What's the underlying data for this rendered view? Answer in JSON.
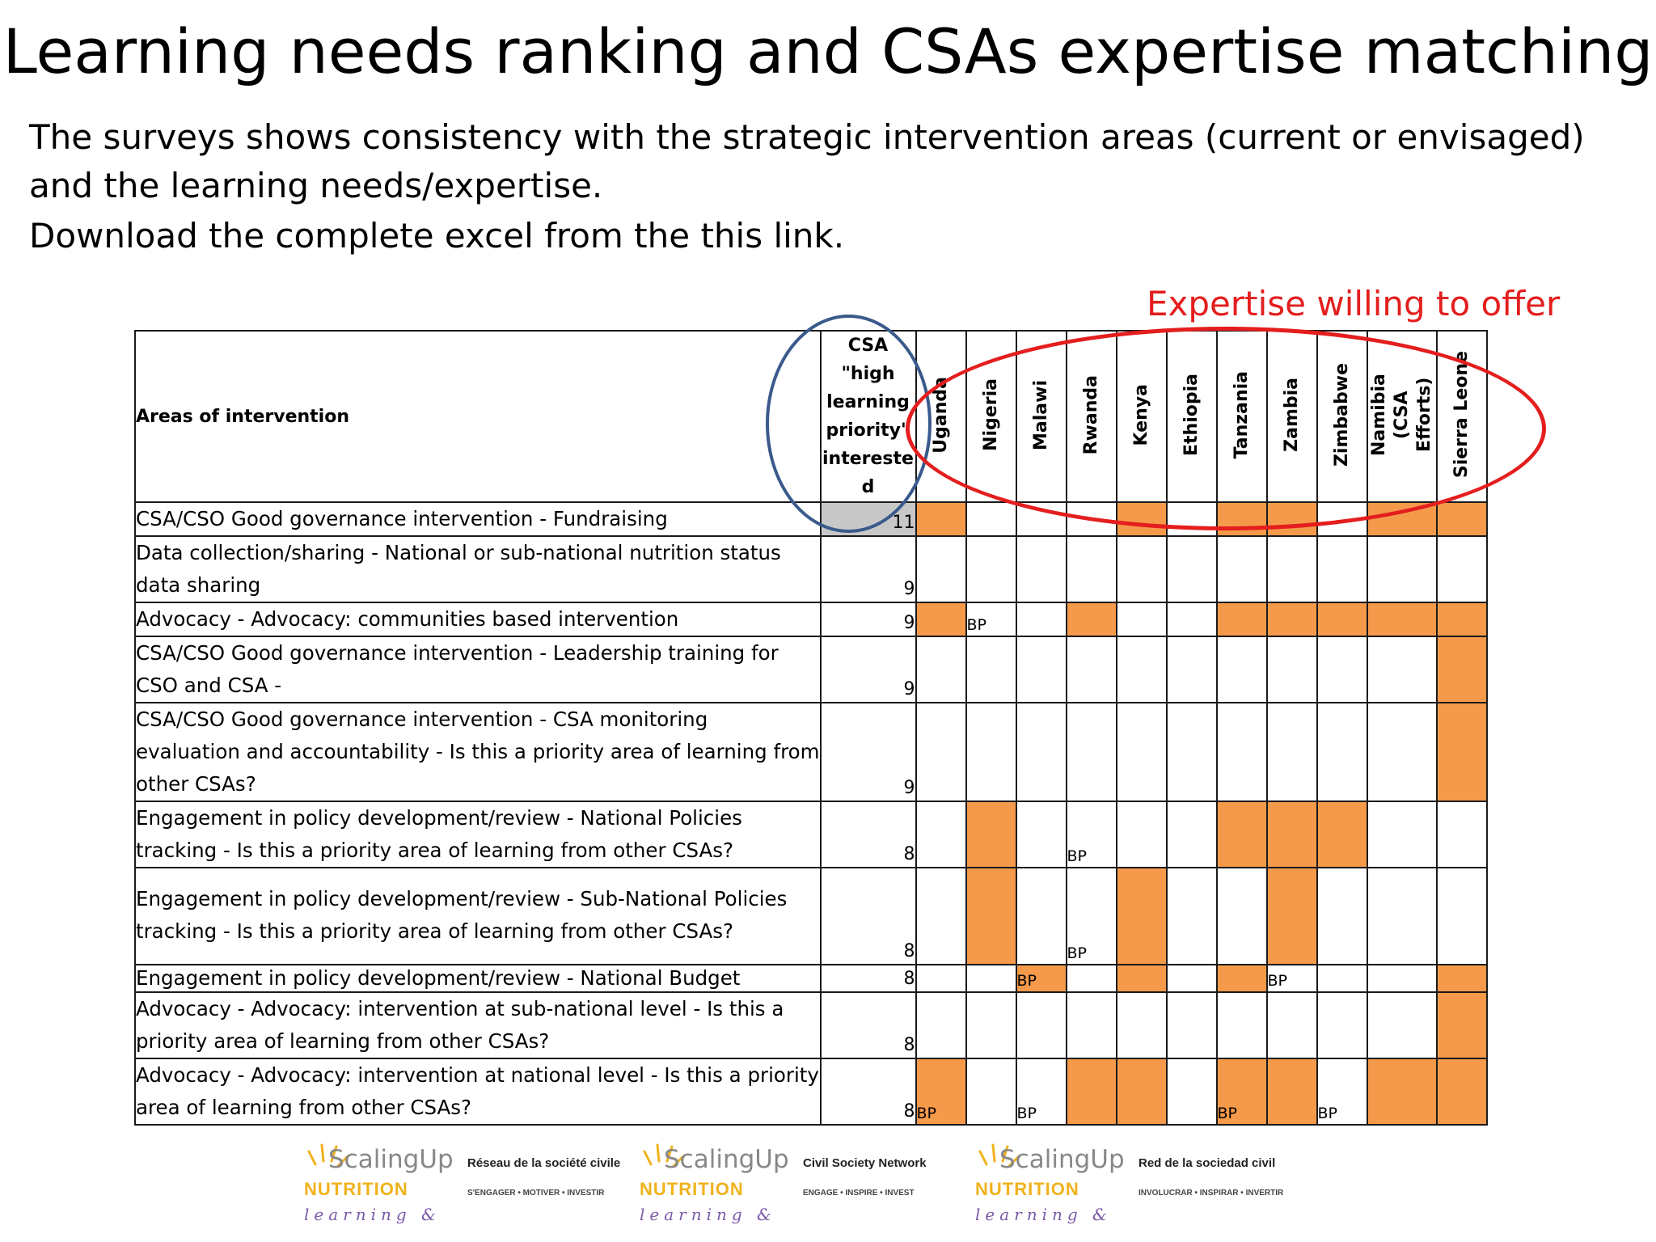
{
  "title": "Learning needs ranking and CSAs expertise matching",
  "intro": {
    "line1": "The surveys shows consistency with the strategic intervention areas (current or envisaged)",
    "line2": "and the learning needs/expertise.",
    "line3": "Download the complete excel from the this link."
  },
  "expertise_label": "Expertise willing to offer",
  "colors": {
    "fill": "#f59a4a",
    "gray": "#c8c8c8",
    "red": "#e41e1e",
    "blue": "#3a5a8c"
  },
  "table": {
    "areas_header": "Areas of intervention",
    "csa_header": [
      "CSA",
      "\"high",
      "learning",
      "priority\"",
      "intereste",
      "d"
    ],
    "countries": [
      "Uganda",
      "Nigeria",
      "Malawi",
      "Rwanda",
      "Kenya",
      "Ethiopia",
      "Tanzania",
      "Zambia",
      "Zimbabwe",
      "Namibia (CSA Efforts)",
      "Sierra Leone"
    ],
    "rows": [
      {
        "area": [
          "CSA/CSO Good governance intervention - Fundraising"
        ],
        "count": "11",
        "gray": true,
        "cells": [
          {
            "f": 1
          },
          {
            "f": 0
          },
          {
            "f": 0
          },
          {
            "f": 0
          },
          {
            "f": 1
          },
          {
            "f": 0
          },
          {
            "f": 1
          },
          {
            "f": 1
          },
          {
            "f": 0
          },
          {
            "f": 1
          },
          {
            "f": 1
          }
        ]
      },
      {
        "area": [
          "Data collection/sharing - National or sub-national nutrition status",
          "data sharing"
        ],
        "count": "9",
        "cells": [
          {
            "f": 0
          },
          {
            "f": 0
          },
          {
            "f": 0
          },
          {
            "f": 0
          },
          {
            "f": 0
          },
          {
            "f": 0
          },
          {
            "f": 0
          },
          {
            "f": 0
          },
          {
            "f": 0
          },
          {
            "f": 0
          },
          {
            "f": 0
          }
        ]
      },
      {
        "area": [
          "Advocacy - Advocacy: communities based intervention"
        ],
        "count": "9",
        "cells": [
          {
            "f": 1
          },
          {
            "f": 0,
            "t": "BP"
          },
          {
            "f": 0
          },
          {
            "f": 1
          },
          {
            "f": 0
          },
          {
            "f": 0
          },
          {
            "f": 1
          },
          {
            "f": 1
          },
          {
            "f": 1
          },
          {
            "f": 1
          },
          {
            "f": 1
          }
        ]
      },
      {
        "area": [
          "CSA/CSO Good governance intervention - Leadership training for",
          "CSO and CSA -"
        ],
        "count": "9",
        "cells": [
          {
            "f": 0
          },
          {
            "f": 0
          },
          {
            "f": 0
          },
          {
            "f": 0
          },
          {
            "f": 0
          },
          {
            "f": 0
          },
          {
            "f": 0
          },
          {
            "f": 0
          },
          {
            "f": 0
          },
          {
            "f": 0
          },
          {
            "f": 1
          }
        ]
      },
      {
        "area": [
          "CSA/CSO Good governance intervention - CSA monitoring",
          "evaluation and accountability - Is this a priority area of learning from",
          "other CSAs?"
        ],
        "count": "9",
        "cells": [
          {
            "f": 0
          },
          {
            "f": 0
          },
          {
            "f": 0
          },
          {
            "f": 0
          },
          {
            "f": 0
          },
          {
            "f": 0
          },
          {
            "f": 0
          },
          {
            "f": 0
          },
          {
            "f": 0
          },
          {
            "f": 0
          },
          {
            "f": 1
          }
        ]
      },
      {
        "area": [
          "Engagement in policy development/review - National Policies",
          "tracking - Is this a priority area of learning from other CSAs?"
        ],
        "count": "8",
        "cells": [
          {
            "f": 0
          },
          {
            "f": 1
          },
          {
            "f": 0
          },
          {
            "f": 0,
            "t": "BP"
          },
          {
            "f": 0
          },
          {
            "f": 0
          },
          {
            "f": 1
          },
          {
            "f": 1
          },
          {
            "f": 1
          },
          {
            "f": 0
          },
          {
            "f": 0
          }
        ]
      },
      {
        "area": [
          "Engagement in policy development/review - Sub-National Policies",
          "tracking - Is this a priority area of learning from other CSAs?"
        ],
        "count": "8",
        "pad": true,
        "cells": [
          {
            "f": 0
          },
          {
            "f": 1
          },
          {
            "f": 0
          },
          {
            "f": 0,
            "t": "BP"
          },
          {
            "f": 1
          },
          {
            "f": 0
          },
          {
            "f": 0
          },
          {
            "f": 1
          },
          {
            "f": 0
          },
          {
            "f": 0
          },
          {
            "f": 0
          }
        ]
      },
      {
        "area": [
          "Engagement in policy development/review - National Budget"
        ],
        "count": "8",
        "short": true,
        "cells": [
          {
            "f": 0
          },
          {
            "f": 0
          },
          {
            "f": 1,
            "t": "BP"
          },
          {
            "f": 0
          },
          {
            "f": 1
          },
          {
            "f": 0
          },
          {
            "f": 1
          },
          {
            "f": 0,
            "t": "BP"
          },
          {
            "f": 0
          },
          {
            "f": 0
          },
          {
            "f": 1
          }
        ]
      },
      {
        "area": [
          "Advocacy - Advocacy: intervention at sub-national level - Is this a",
          "priority area of learning from other CSAs?"
        ],
        "count": "8",
        "cells": [
          {
            "f": 0
          },
          {
            "f": 0
          },
          {
            "f": 0
          },
          {
            "f": 0
          },
          {
            "f": 0
          },
          {
            "f": 0
          },
          {
            "f": 0
          },
          {
            "f": 0
          },
          {
            "f": 0
          },
          {
            "f": 0
          },
          {
            "f": 1
          }
        ]
      },
      {
        "area": [
          "Advocacy - Advocacy: intervention at national level - Is this a priority",
          "area of learning from other CSAs?"
        ],
        "count": "8",
        "cells": [
          {
            "f": 1,
            "t": "BP"
          },
          {
            "f": 0
          },
          {
            "f": 0,
            "t": "BP"
          },
          {
            "f": 1
          },
          {
            "f": 1
          },
          {
            "f": 0
          },
          {
            "f": 1,
            "t": "BP"
          },
          {
            "f": 1
          },
          {
            "f": 0,
            "t": "BP"
          },
          {
            "f": 1
          },
          {
            "f": 1
          }
        ]
      }
    ]
  },
  "footer": {
    "logos": [
      {
        "scaling": "ScalingUp",
        "nutrition": "NUTRITION",
        "network": "Réseau de la société civile",
        "tagline": "S'ENGAGER • MOTIVER • INVESTIR",
        "learning": "learning &"
      },
      {
        "scaling": "ScalingUp",
        "nutrition": "NUTRITION",
        "network": "Civil Society Network",
        "tagline": "ENGAGE • INSPIRE • INVEST",
        "learning": "learning &"
      },
      {
        "scaling": "ScalingUp",
        "nutrition": "NUTRITION",
        "network": "Red de la sociedad civil",
        "tagline": "INVOLUCRAR • INSPIRAR • INVERTIR",
        "learning": "learning &"
      }
    ]
  }
}
